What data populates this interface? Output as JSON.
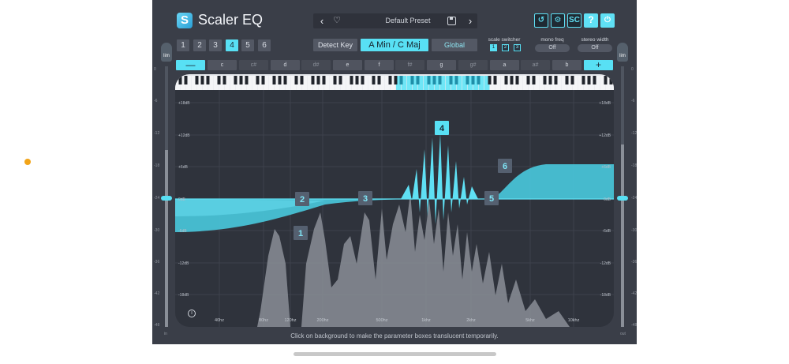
{
  "app": {
    "title": "Scaler EQ",
    "logo_letter": "S"
  },
  "preset": {
    "name": "Default Preset",
    "prev": "‹",
    "next": "›",
    "heart": "♡"
  },
  "header_buttons": {
    "undo": "↺",
    "settings": "⚙",
    "sc": "SC",
    "help": "?",
    "power": "⏻"
  },
  "bands": [
    "1",
    "2",
    "3",
    "4",
    "5",
    "6"
  ],
  "active_band": "4",
  "detect_key": "Detect Key",
  "key": "A Min / C Maj",
  "global": "Global",
  "scale_switcher": {
    "label": "scale switcher",
    "options": [
      "1",
      "2",
      "3"
    ]
  },
  "mono_freq": {
    "label": "mono freq",
    "value": "Off"
  },
  "stereo_width": {
    "label": "stereo width",
    "value": "Off"
  },
  "notes": {
    "minus": "—",
    "plus": "+",
    "items": [
      "c",
      "c#",
      "d",
      "d#",
      "e",
      "f",
      "f#",
      "g",
      "g#",
      "a",
      "a#",
      "b"
    ]
  },
  "lim": "lim",
  "db_right": [
    "+18dB",
    "+12dB",
    "+6dB",
    "0dB",
    "-6dB",
    "-12dB",
    "-18dB"
  ],
  "db_left": [
    "+18dB",
    "+12dB",
    "+6dB",
    "0dB",
    "-6dB",
    "-12dB",
    "-18dB"
  ],
  "freq_labels": [
    "40hz",
    "80hz",
    "120hz",
    "200hz",
    "500hz",
    "1khz",
    "2khz",
    "5khz",
    "10khz"
  ],
  "meter_scale": [
    "0",
    "-6",
    "-12",
    "-18",
    "-24",
    "-30",
    "-36",
    "-42",
    "-48"
  ],
  "meter_bottom_left": "in",
  "meter_bottom_right": "out",
  "band_markers": [
    "1",
    "2",
    "3",
    "4",
    "5",
    "6"
  ],
  "hint": "Click on background to make the parameter boxes translucent temporarily.",
  "info": "i",
  "colors": {
    "accent": "#58e0f4",
    "panel": "#3a3e48",
    "display": "#2f333c"
  }
}
